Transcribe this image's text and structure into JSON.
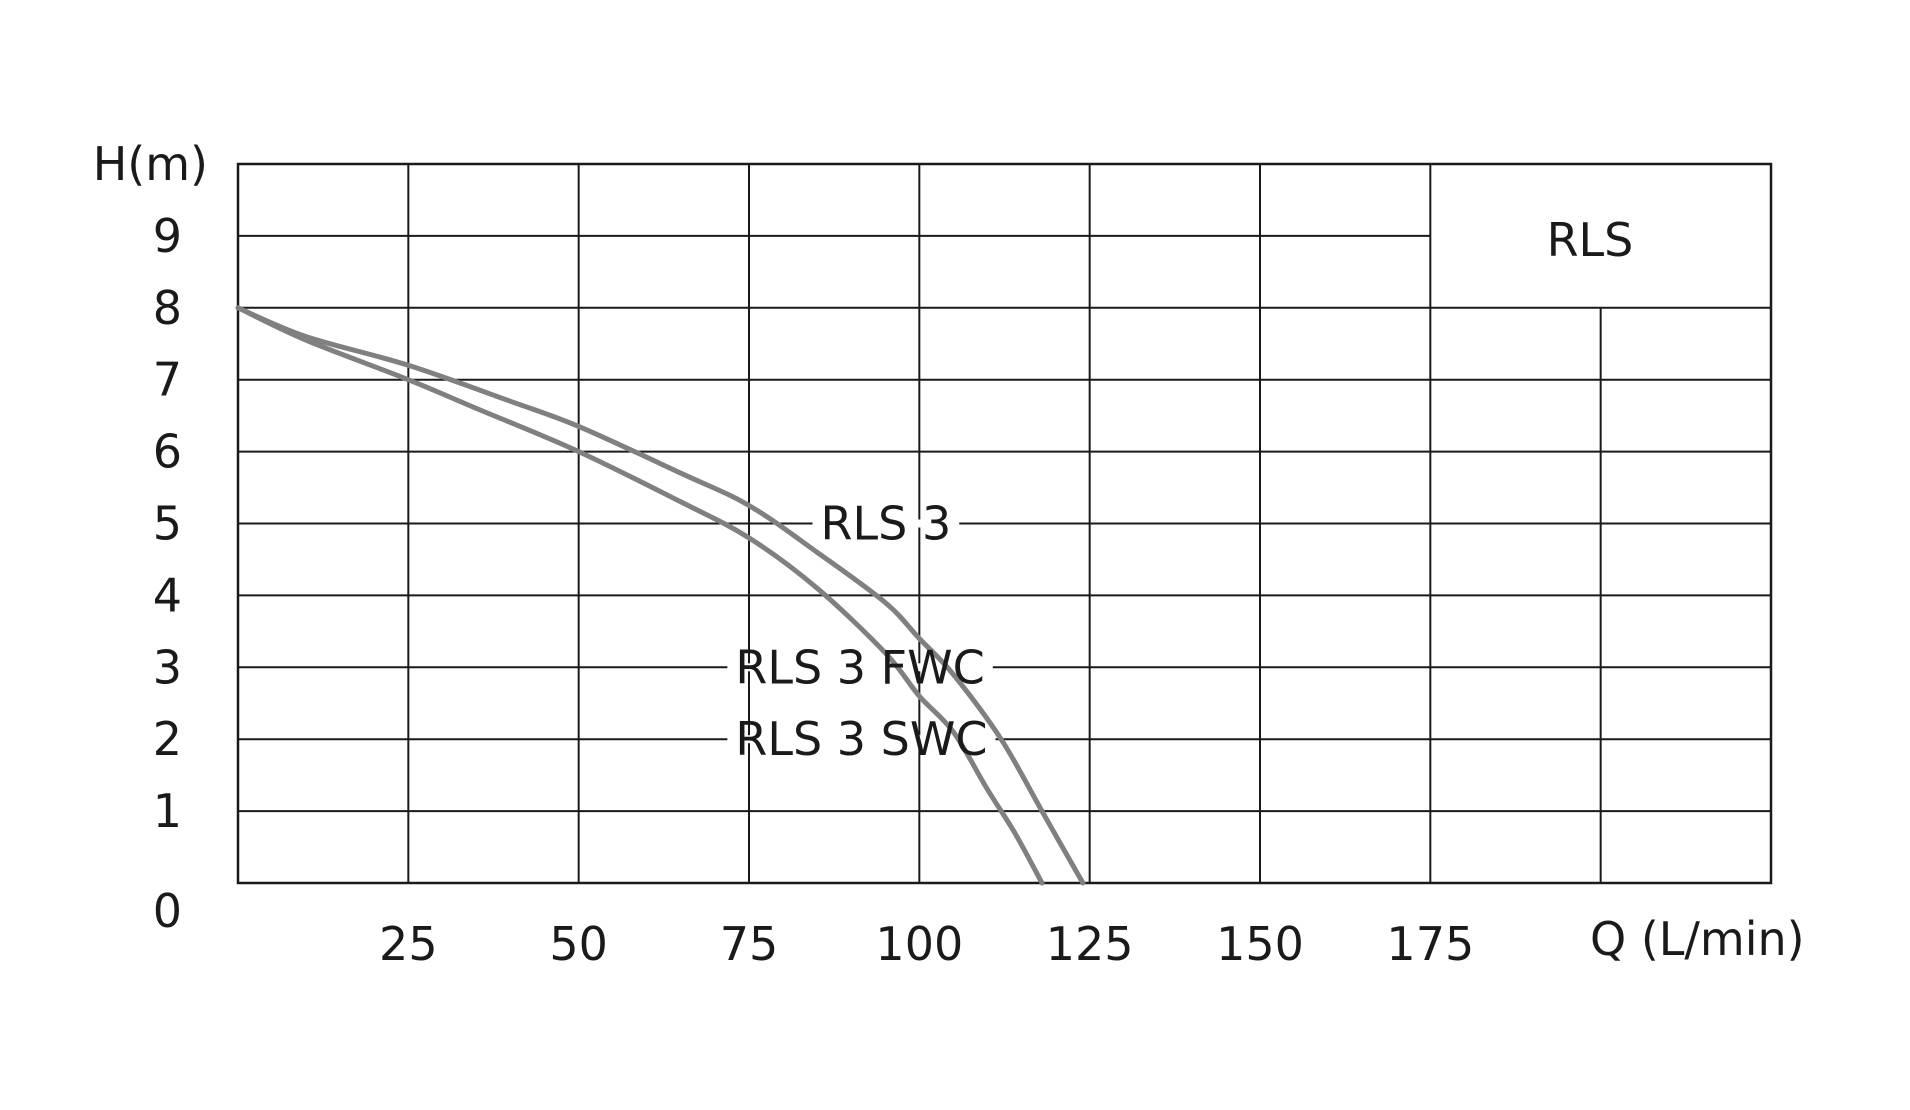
{
  "chart_data": {
    "type": "line",
    "title": "RLS",
    "xlabel": "Q (L/min)",
    "ylabel": "H(m)",
    "xlim": [
      0,
      225
    ],
    "ylim": [
      0,
      10
    ],
    "x_ticks": [
      25,
      50,
      75,
      100,
      125,
      150,
      175
    ],
    "y_ticks": [
      0,
      1,
      2,
      3,
      4,
      5,
      6,
      7,
      8,
      9
    ],
    "grid": true,
    "series": [
      {
        "name": "RLS 3",
        "color": "#808080",
        "x": [
          0,
          10,
          25,
          40,
          50,
          65,
          75,
          85,
          95,
          100,
          105,
          112,
          118,
          124
        ],
        "y": [
          8,
          7.6,
          7.2,
          6.7,
          6.35,
          5.7,
          5.25,
          4.6,
          3.9,
          3.4,
          2.9,
          2.0,
          1.0,
          0
        ]
      },
      {
        "name": "RLS 3 FWC",
        "color": "#808080",
        "x": [
          0,
          10,
          25,
          35,
          50,
          65,
          75,
          85,
          95,
          100,
          105,
          110,
          114,
          118
        ],
        "y": [
          8,
          7.55,
          7.0,
          6.6,
          6.0,
          5.3,
          4.8,
          4.1,
          3.2,
          2.6,
          2.1,
          1.3,
          0.7,
          0
        ]
      }
    ],
    "legend_placement": "inline",
    "annotations": [
      {
        "text": "RLS 3",
        "x": 85.5,
        "y": 5
      },
      {
        "text": "RLS 3 FWC",
        "x": 73,
        "y": 3
      },
      {
        "text": "RLS 3 SWC",
        "x": 73,
        "y": 2
      }
    ]
  }
}
